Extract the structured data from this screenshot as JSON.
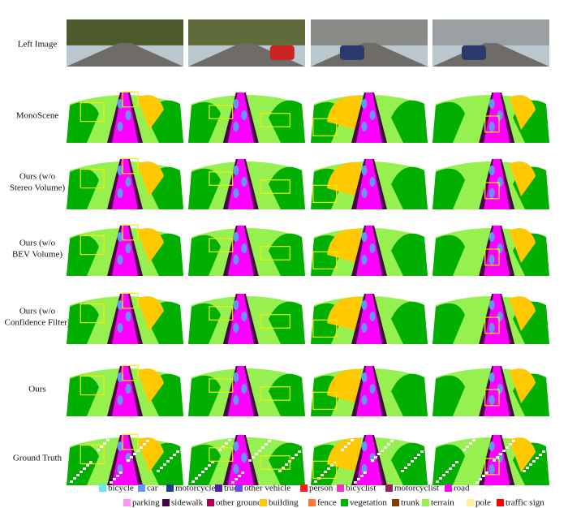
{
  "rows": [
    {
      "label": "Left Image"
    },
    {
      "label": "MonoScene"
    },
    {
      "label": "Ours (w/o",
      "label2": "Stereo Volume)"
    },
    {
      "label": "Ours (w/o",
      "label2": "BEV Volume)"
    },
    {
      "label": "Ours (w/o",
      "label2": "Confidence Filter)"
    },
    {
      "label": "Ours"
    },
    {
      "label": "Ground Truth"
    }
  ],
  "legend": [
    [
      {
        "label": "bicycle",
        "color": "#64e6f5"
      },
      {
        "label": "car",
        "color": "#6496f5"
      },
      {
        "label": "motorcycle",
        "color": "#1e3c96"
      },
      {
        "label": "truck",
        "color": "#501eb4"
      },
      {
        "label": "other vehicle",
        "color": "#6450fa"
      },
      {
        "label": "person",
        "color": "#ff1e1e"
      },
      {
        "label": "bicyclist",
        "color": "#ff28c8"
      },
      {
        "label": "motorcyclist",
        "color": "#961e5a"
      },
      {
        "label": "road",
        "color": "#ff00ff"
      }
    ],
    [
      {
        "label": "parking",
        "color": "#ff96ff"
      },
      {
        "label": "sidewalk",
        "color": "#4b004b"
      },
      {
        "label": "other ground",
        "color": "#af004b"
      },
      {
        "label": "building",
        "color": "#ffc800"
      },
      {
        "label": "fence",
        "color": "#ff7832"
      },
      {
        "label": "vegetation",
        "color": "#00af00"
      },
      {
        "label": "trunk",
        "color": "#873c00"
      },
      {
        "label": "terrain",
        "color": "#96f050"
      },
      {
        "label": "pole",
        "color": "#fff096"
      },
      {
        "label": "traffic sign",
        "color": "#ff0000"
      }
    ]
  ]
}
